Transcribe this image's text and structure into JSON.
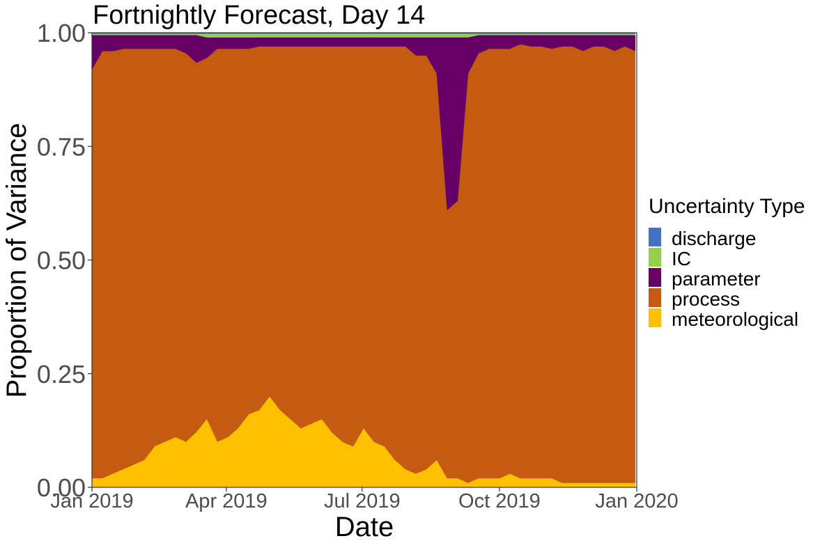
{
  "chart_data": {
    "type": "area",
    "stacked": true,
    "normalized": true,
    "title": "Fortnightly Forecast, Day 14",
    "xlabel": "Date",
    "ylabel": "Proportion of Variance",
    "x_range": [
      "2019-01-01",
      "2020-01-01"
    ],
    "ylim": [
      0,
      1
    ],
    "x_ticks": [
      {
        "date": "2019-01-01",
        "label": "Jan 2019"
      },
      {
        "date": "2019-04-01",
        "label": "Apr 2019"
      },
      {
        "date": "2019-07-01",
        "label": "Jul 2019"
      },
      {
        "date": "2019-10-01",
        "label": "Oct 2019"
      },
      {
        "date": "2020-01-01",
        "label": "Jan 2020"
      }
    ],
    "y_ticks": [
      {
        "value": 0.0,
        "label": "0.00"
      },
      {
        "value": 0.25,
        "label": "0.25"
      },
      {
        "value": 0.5,
        "label": "0.50"
      },
      {
        "value": 0.75,
        "label": "0.75"
      },
      {
        "value": 1.0,
        "label": "1.00"
      }
    ],
    "grid": false,
    "legend": {
      "title": "Uncertainty Type",
      "position": "right",
      "entries": [
        {
          "label": "discharge",
          "color": "#4472C4"
        },
        {
          "label": "IC",
          "color": "#92D050"
        },
        {
          "label": "parameter",
          "color": "#660066"
        },
        {
          "label": "process",
          "color": "#C55A11"
        },
        {
          "label": "meteorological",
          "color": "#FFC000"
        }
      ]
    },
    "x": [
      "2019-01-01",
      "2019-01-08",
      "2019-01-15",
      "2019-01-22",
      "2019-01-29",
      "2019-02-05",
      "2019-02-12",
      "2019-02-19",
      "2019-02-26",
      "2019-03-05",
      "2019-03-12",
      "2019-03-19",
      "2019-03-26",
      "2019-04-02",
      "2019-04-09",
      "2019-04-16",
      "2019-04-23",
      "2019-04-30",
      "2019-05-07",
      "2019-05-14",
      "2019-05-21",
      "2019-05-28",
      "2019-06-04",
      "2019-06-11",
      "2019-06-18",
      "2019-06-25",
      "2019-07-02",
      "2019-07-09",
      "2019-07-16",
      "2019-07-23",
      "2019-07-30",
      "2019-08-06",
      "2019-08-13",
      "2019-08-20",
      "2019-08-27",
      "2019-09-03",
      "2019-09-10",
      "2019-09-17",
      "2019-09-24",
      "2019-10-01",
      "2019-10-08",
      "2019-10-15",
      "2019-10-22",
      "2019-10-29",
      "2019-11-05",
      "2019-11-12",
      "2019-11-19",
      "2019-11-26",
      "2019-12-03",
      "2019-12-10",
      "2019-12-17",
      "2019-12-24",
      "2019-12-31"
    ],
    "series": [
      {
        "name": "meteorological",
        "color": "#FFC000",
        "values": [
          0.02,
          0.02,
          0.03,
          0.04,
          0.05,
          0.06,
          0.09,
          0.1,
          0.11,
          0.1,
          0.12,
          0.15,
          0.1,
          0.11,
          0.13,
          0.16,
          0.17,
          0.2,
          0.17,
          0.15,
          0.13,
          0.14,
          0.15,
          0.12,
          0.1,
          0.09,
          0.13,
          0.1,
          0.09,
          0.06,
          0.04,
          0.03,
          0.04,
          0.06,
          0.02,
          0.02,
          0.01,
          0.02,
          0.02,
          0.02,
          0.03,
          0.02,
          0.02,
          0.02,
          0.02,
          0.01,
          0.01,
          0.01,
          0.01,
          0.01,
          0.01,
          0.01,
          0.01
        ]
      },
      {
        "name": "process",
        "color": "#C55A11",
        "values": [
          0.89,
          0.93,
          0.92,
          0.92,
          0.91,
          0.9,
          0.87,
          0.86,
          0.85,
          0.85,
          0.8,
          0.79,
          0.86,
          0.85,
          0.83,
          0.8,
          0.8,
          0.77,
          0.8,
          0.82,
          0.84,
          0.83,
          0.82,
          0.85,
          0.87,
          0.88,
          0.84,
          0.87,
          0.88,
          0.91,
          0.93,
          0.92,
          0.91,
          0.85,
          0.59,
          0.61,
          0.9,
          0.93,
          0.94,
          0.94,
          0.93,
          0.95,
          0.95,
          0.95,
          0.94,
          0.96,
          0.96,
          0.95,
          0.96,
          0.96,
          0.95,
          0.96,
          0.95
        ]
      },
      {
        "name": "parameter",
        "color": "#660066",
        "values": [
          0.075,
          0.035,
          0.035,
          0.03,
          0.03,
          0.03,
          0.03,
          0.03,
          0.03,
          0.04,
          0.06,
          0.045,
          0.025,
          0.025,
          0.025,
          0.025,
          0.02,
          0.02,
          0.02,
          0.02,
          0.02,
          0.02,
          0.02,
          0.02,
          0.02,
          0.02,
          0.02,
          0.02,
          0.02,
          0.02,
          0.02,
          0.04,
          0.04,
          0.08,
          0.38,
          0.36,
          0.08,
          0.04,
          0.03,
          0.03,
          0.03,
          0.02,
          0.025,
          0.025,
          0.03,
          0.025,
          0.025,
          0.035,
          0.025,
          0.025,
          0.035,
          0.025,
          0.035
        ]
      },
      {
        "name": "IC",
        "color": "#92D050",
        "values": [
          0.003,
          0.003,
          0.003,
          0.003,
          0.003,
          0.003,
          0.003,
          0.003,
          0.003,
          0.003,
          0.003,
          0.008,
          0.008,
          0.008,
          0.008,
          0.008,
          0.008,
          0.008,
          0.008,
          0.008,
          0.008,
          0.008,
          0.008,
          0.008,
          0.008,
          0.008,
          0.008,
          0.008,
          0.008,
          0.008,
          0.008,
          0.008,
          0.008,
          0.008,
          0.008,
          0.008,
          0.008,
          0.003,
          0.003,
          0.003,
          0.003,
          0.003,
          0.003,
          0.003,
          0.003,
          0.003,
          0.003,
          0.003,
          0.003,
          0.003,
          0.003,
          0.003,
          0.003
        ]
      },
      {
        "name": "discharge",
        "color": "#4472C4",
        "values": [
          0.002,
          0.002,
          0.002,
          0.002,
          0.002,
          0.002,
          0.002,
          0.002,
          0.002,
          0.002,
          0.002,
          0.002,
          0.002,
          0.002,
          0.002,
          0.002,
          0.002,
          0.002,
          0.002,
          0.002,
          0.002,
          0.002,
          0.002,
          0.002,
          0.002,
          0.002,
          0.002,
          0.002,
          0.002,
          0.002,
          0.002,
          0.002,
          0.002,
          0.002,
          0.002,
          0.002,
          0.002,
          0.002,
          0.002,
          0.002,
          0.002,
          0.002,
          0.002,
          0.002,
          0.002,
          0.002,
          0.002,
          0.002,
          0.002,
          0.002,
          0.002,
          0.002,
          0.002
        ]
      }
    ]
  }
}
